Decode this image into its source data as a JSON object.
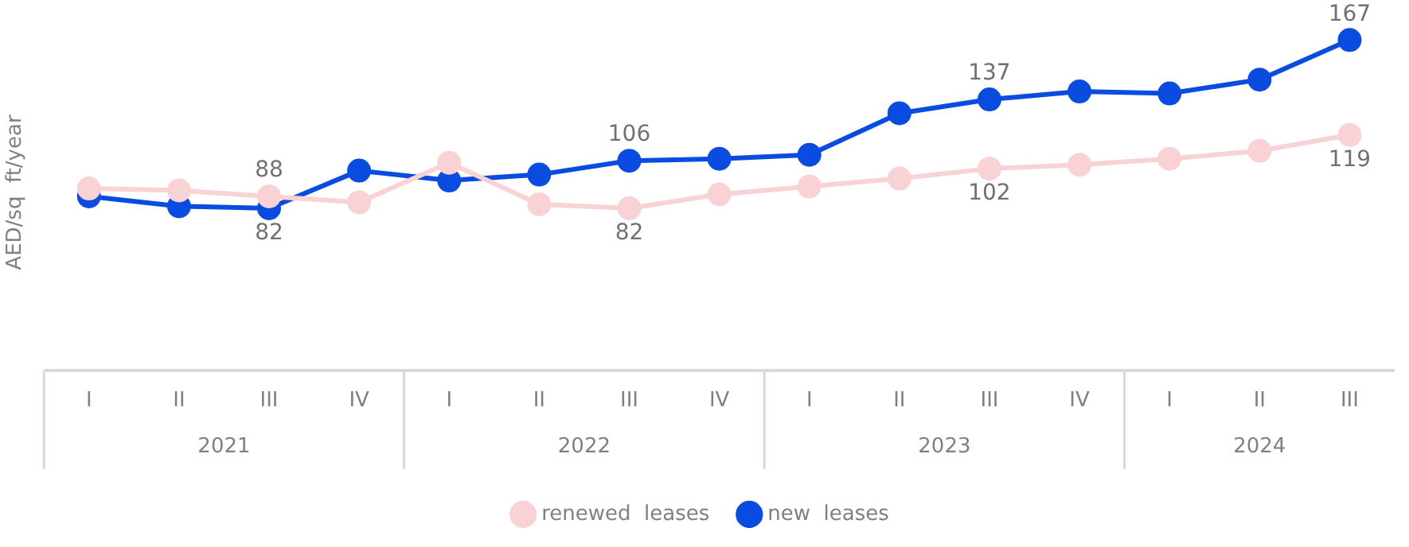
{
  "chart_data": {
    "type": "line",
    "ylabel": "AED/sq  ft/year",
    "categories": [
      "I",
      "II",
      "III",
      "IV",
      "I",
      "II",
      "III",
      "IV",
      "I",
      "II",
      "III",
      "IV",
      "I",
      "II",
      "III"
    ],
    "annotations": [
      "2021",
      "2022",
      "2023",
      "2024"
    ],
    "grid": false,
    "legend": "bottom",
    "marker": "circle",
    "line_style": "solid",
    "series": [
      {
        "name": "new  leases",
        "color": "#0a4be0",
        "values": [
          88,
          83,
          82,
          101,
          96,
          99,
          106,
          107,
          109,
          130,
          137,
          141,
          140,
          147,
          167
        ],
        "value_labels": [
          null,
          null,
          "82",
          null,
          null,
          null,
          "106",
          null,
          null,
          null,
          "137",
          null,
          null,
          null,
          "167"
        ]
      },
      {
        "name": "renewed  leases",
        "color": "#f9d2d5",
        "values": [
          92,
          91,
          88,
          85,
          105,
          84,
          82,
          89,
          93,
          97,
          102,
          104,
          107,
          111,
          119
        ],
        "value_labels": [
          null,
          null,
          "88",
          null,
          null,
          null,
          "82",
          null,
          null,
          null,
          "102",
          null,
          null,
          null,
          "119"
        ]
      }
    ]
  }
}
